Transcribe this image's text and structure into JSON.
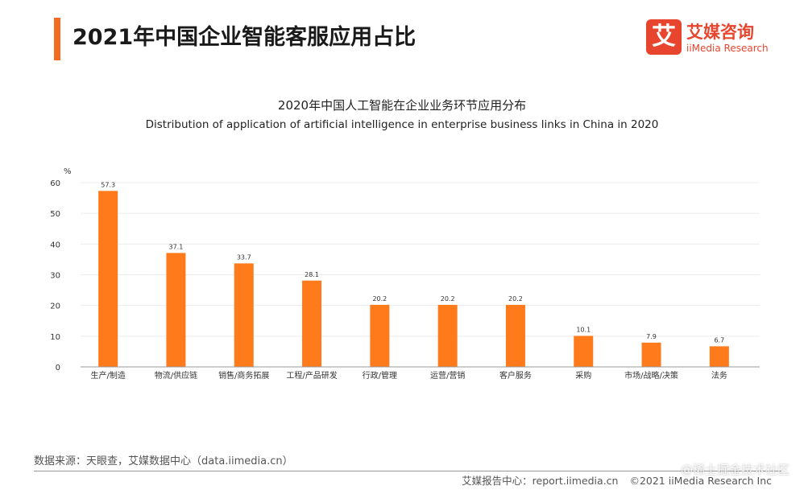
{
  "header": {
    "title": "2021年中国企业智能客服应用占比",
    "accent_color": "#f26b21"
  },
  "logo": {
    "mark": "艾",
    "name_cn": "艾媒咨询",
    "name_en": "iiMedia Research",
    "color": "#e8452e"
  },
  "chart_data": {
    "type": "bar",
    "title": "2020年中国人工智能在企业业务环节应用分布",
    "subtitle": "Distribution of application of artificial intelligence in enterprise business links in China in 2020",
    "ylabel": "%",
    "xlabel": "",
    "ylim": [
      0,
      60
    ],
    "yticks": [
      0,
      10,
      20,
      30,
      40,
      50,
      60
    ],
    "grid": true,
    "bar_color": "#ff7a1a",
    "categories": [
      "生产/制造",
      "物流/供应链",
      "销售/商务拓展",
      "工程/产品研发",
      "行政/管理",
      "运营/营销",
      "客户服务",
      "采购",
      "市场/战略/决策",
      "法务"
    ],
    "values": [
      57.3,
      37.1,
      33.7,
      28.1,
      20.2,
      20.2,
      20.2,
      10.1,
      7.9,
      6.7
    ]
  },
  "footer": {
    "source": "数据来源：天眼查，艾媒数据中心（data.iimedia.cn）",
    "report_center": "艾媒报告中心：report.iimedia.cn",
    "copyright": "©2021  iiMedia Research  Inc",
    "watermark": "@稀土掘金技术社区"
  }
}
